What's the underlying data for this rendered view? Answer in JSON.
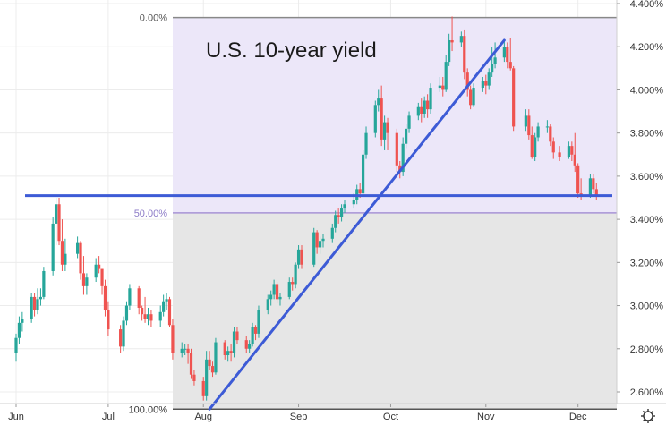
{
  "chart_data": {
    "type": "candlestick",
    "title": "U.S. 10-year yield",
    "ylim": [
      2.53,
      4.4
    ],
    "y_ticks": [
      "4.400%",
      "4.200%",
      "4.000%",
      "3.800%",
      "3.600%",
      "3.400%",
      "3.200%",
      "3.000%",
      "2.800%",
      "2.600%"
    ],
    "x_ticks": [
      "Jun",
      "Jul",
      "Aug",
      "Sep",
      "Oct",
      "Nov",
      "Dec"
    ],
    "fib_levels": [
      {
        "label": "0.00%",
        "value": 4.335
      },
      {
        "label": "50.00%",
        "value": 3.43
      },
      {
        "label": "100.00%",
        "value": 2.52
      }
    ],
    "horizontal_line": 3.51,
    "trendlines": [
      {
        "from": [
          "Aug 3",
          2.52
        ],
        "to": [
          "Nov 7",
          4.23
        ]
      }
    ],
    "grid": true,
    "colors": {
      "up": "#26a69a",
      "down": "#ef5350",
      "line": "#3d5bd6",
      "upper_zone": "#ece7f9",
      "lower_zone": "#e6e6e6",
      "fib_zero": "#888888",
      "fib_mid": "#a894d6",
      "fib_full": "#555555"
    },
    "candles": [
      {
        "date": "Jun 1",
        "o": 2.78,
        "h": 2.87,
        "l": 2.74,
        "c": 2.85
      },
      {
        "date": "Jun 2",
        "o": 2.85,
        "h": 2.95,
        "l": 2.82,
        "c": 2.92
      },
      {
        "date": "Jun 3",
        "o": 2.92,
        "h": 2.97,
        "l": 2.88,
        "c": 2.94
      },
      {
        "date": "Jun 6",
        "o": 2.94,
        "h": 3.06,
        "l": 2.92,
        "c": 3.04
      },
      {
        "date": "Jun 7",
        "o": 3.04,
        "h": 3.06,
        "l": 2.95,
        "c": 2.98
      },
      {
        "date": "Jun 8",
        "o": 2.98,
        "h": 3.08,
        "l": 2.96,
        "c": 3.03
      },
      {
        "date": "Jun 9",
        "o": 3.03,
        "h": 3.08,
        "l": 3.0,
        "c": 3.04
      },
      {
        "date": "Jun 10",
        "o": 3.04,
        "h": 3.18,
        "l": 3.03,
        "c": 3.16
      },
      {
        "date": "Jun 13",
        "o": 3.16,
        "h": 3.41,
        "l": 3.14,
        "c": 3.38
      },
      {
        "date": "Jun 14",
        "o": 3.38,
        "h": 3.5,
        "l": 3.28,
        "c": 3.47
      },
      {
        "date": "Jun 15",
        "o": 3.47,
        "h": 3.5,
        "l": 3.28,
        "c": 3.3
      },
      {
        "date": "Jun 16",
        "o": 3.3,
        "h": 3.4,
        "l": 3.16,
        "c": 3.19
      },
      {
        "date": "Jun 17",
        "o": 3.19,
        "h": 3.31,
        "l": 3.16,
        "c": 3.24
      },
      {
        "date": "Jun 21",
        "o": 3.24,
        "h": 3.32,
        "l": 3.22,
        "c": 3.29
      },
      {
        "date": "Jun 22",
        "o": 3.29,
        "h": 3.3,
        "l": 3.12,
        "c": 3.15
      },
      {
        "date": "Jun 23",
        "o": 3.15,
        "h": 3.23,
        "l": 3.05,
        "c": 3.09
      },
      {
        "date": "Jun 24",
        "o": 3.09,
        "h": 3.15,
        "l": 3.05,
        "c": 3.13
      },
      {
        "date": "Jun 27",
        "o": 3.13,
        "h": 3.22,
        "l": 3.11,
        "c": 3.19
      },
      {
        "date": "Jun 28",
        "o": 3.19,
        "h": 3.23,
        "l": 3.15,
        "c": 3.17
      },
      {
        "date": "Jun 29",
        "o": 3.17,
        "h": 3.17,
        "l": 3.05,
        "c": 3.09
      },
      {
        "date": "Jun 30",
        "o": 3.09,
        "h": 3.12,
        "l": 2.95,
        "c": 2.98
      },
      {
        "date": "Jul 1",
        "o": 2.98,
        "h": 3.02,
        "l": 2.86,
        "c": 2.89
      },
      {
        "date": "Jul 5",
        "o": 2.89,
        "h": 2.91,
        "l": 2.78,
        "c": 2.81
      },
      {
        "date": "Jul 6",
        "o": 2.81,
        "h": 2.95,
        "l": 2.79,
        "c": 2.93
      },
      {
        "date": "Jul 7",
        "o": 2.93,
        "h": 3.02,
        "l": 2.91,
        "c": 3.0
      },
      {
        "date": "Jul 8",
        "o": 3.0,
        "h": 3.1,
        "l": 2.98,
        "c": 3.08
      },
      {
        "date": "Jul 11",
        "o": 3.08,
        "h": 3.09,
        "l": 2.96,
        "c": 2.99
      },
      {
        "date": "Jul 12",
        "o": 2.99,
        "h": 3.0,
        "l": 2.93,
        "c": 2.96
      },
      {
        "date": "Jul 13",
        "o": 2.96,
        "h": 3.04,
        "l": 2.92,
        "c": 2.94
      },
      {
        "date": "Jul 14",
        "o": 2.94,
        "h": 2.99,
        "l": 2.91,
        "c": 2.96
      },
      {
        "date": "Jul 15",
        "o": 2.96,
        "h": 2.98,
        "l": 2.9,
        "c": 2.93
      },
      {
        "date": "Jul 18",
        "o": 2.93,
        "h": 3.0,
        "l": 2.9,
        "c": 2.97
      },
      {
        "date": "Jul 19",
        "o": 2.97,
        "h": 3.05,
        "l": 2.95,
        "c": 3.02
      },
      {
        "date": "Jul 20",
        "o": 3.02,
        "h": 3.06,
        "l": 2.98,
        "c": 3.03
      },
      {
        "date": "Jul 21",
        "o": 3.03,
        "h": 3.04,
        "l": 2.9,
        "c": 2.91
      },
      {
        "date": "Jul 22",
        "o": 2.91,
        "h": 2.94,
        "l": 2.75,
        "c": 2.78
      },
      {
        "date": "Jul 25",
        "o": 2.78,
        "h": 2.83,
        "l": 2.76,
        "c": 2.8
      },
      {
        "date": "Jul 26",
        "o": 2.8,
        "h": 2.82,
        "l": 2.77,
        "c": 2.8
      },
      {
        "date": "Jul 27",
        "o": 2.8,
        "h": 2.82,
        "l": 2.73,
        "c": 2.78
      },
      {
        "date": "Jul 28",
        "o": 2.78,
        "h": 2.8,
        "l": 2.66,
        "c": 2.68
      },
      {
        "date": "Jul 29",
        "o": 2.68,
        "h": 2.7,
        "l": 2.63,
        "c": 2.65
      },
      {
        "date": "Aug 1",
        "o": 2.65,
        "h": 2.67,
        "l": 2.56,
        "c": 2.58
      },
      {
        "date": "Aug 2",
        "o": 2.58,
        "h": 2.79,
        "l": 2.56,
        "c": 2.75
      },
      {
        "date": "Aug 3",
        "o": 2.75,
        "h": 2.79,
        "l": 2.7,
        "c": 2.72
      },
      {
        "date": "Aug 4",
        "o": 2.72,
        "h": 2.74,
        "l": 2.67,
        "c": 2.69
      },
      {
        "date": "Aug 5",
        "o": 2.69,
        "h": 2.85,
        "l": 2.68,
        "c": 2.83
      },
      {
        "date": "Aug 8",
        "o": 2.83,
        "h": 2.84,
        "l": 2.75,
        "c": 2.77
      },
      {
        "date": "Aug 9",
        "o": 2.77,
        "h": 2.81,
        "l": 2.74,
        "c": 2.79
      },
      {
        "date": "Aug 10",
        "o": 2.79,
        "h": 2.82,
        "l": 2.74,
        "c": 2.78
      },
      {
        "date": "Aug 11",
        "o": 2.78,
        "h": 2.9,
        "l": 2.76,
        "c": 2.88
      },
      {
        "date": "Aug 12",
        "o": 2.88,
        "h": 2.9,
        "l": 2.82,
        "c": 2.84
      },
      {
        "date": "Aug 15",
        "o": 2.84,
        "h": 2.86,
        "l": 2.78,
        "c": 2.8
      },
      {
        "date": "Aug 16",
        "o": 2.8,
        "h": 2.84,
        "l": 2.78,
        "c": 2.82
      },
      {
        "date": "Aug 17",
        "o": 2.82,
        "h": 2.92,
        "l": 2.81,
        "c": 2.9
      },
      {
        "date": "Aug 18",
        "o": 2.9,
        "h": 2.91,
        "l": 2.84,
        "c": 2.87
      },
      {
        "date": "Aug 19",
        "o": 2.87,
        "h": 3.0,
        "l": 2.85,
        "c": 2.98
      },
      {
        "date": "Aug 22",
        "o": 2.98,
        "h": 3.05,
        "l": 2.96,
        "c": 3.03
      },
      {
        "date": "Aug 23",
        "o": 3.03,
        "h": 3.07,
        "l": 3.0,
        "c": 3.05
      },
      {
        "date": "Aug 24",
        "o": 3.05,
        "h": 3.12,
        "l": 3.03,
        "c": 3.1
      },
      {
        "date": "Aug 25",
        "o": 3.1,
        "h": 3.11,
        "l": 3.01,
        "c": 3.03
      },
      {
        "date": "Aug 26",
        "o": 3.03,
        "h": 3.06,
        "l": 3.0,
        "c": 3.04
      },
      {
        "date": "Aug 29",
        "o": 3.04,
        "h": 3.13,
        "l": 3.03,
        "c": 3.11
      },
      {
        "date": "Aug 30",
        "o": 3.11,
        "h": 3.13,
        "l": 3.07,
        "c": 3.1
      },
      {
        "date": "Aug 31",
        "o": 3.1,
        "h": 3.2,
        "l": 3.08,
        "c": 3.19
      },
      {
        "date": "Sep 1",
        "o": 3.19,
        "h": 3.28,
        "l": 3.17,
        "c": 3.26
      },
      {
        "date": "Sep 2",
        "o": 3.26,
        "h": 3.28,
        "l": 3.17,
        "c": 3.19
      },
      {
        "date": "Sep 6",
        "o": 3.19,
        "h": 3.36,
        "l": 3.18,
        "c": 3.34
      },
      {
        "date": "Sep 7",
        "o": 3.34,
        "h": 3.35,
        "l": 3.24,
        "c": 3.27
      },
      {
        "date": "Sep 8",
        "o": 3.27,
        "h": 3.32,
        "l": 3.24,
        "c": 3.3
      },
      {
        "date": "Sep 9",
        "o": 3.3,
        "h": 3.33,
        "l": 3.27,
        "c": 3.31
      },
      {
        "date": "Sep 12",
        "o": 3.31,
        "h": 3.38,
        "l": 3.29,
        "c": 3.36
      },
      {
        "date": "Sep 13",
        "o": 3.36,
        "h": 3.44,
        "l": 3.34,
        "c": 3.42
      },
      {
        "date": "Sep 14",
        "o": 3.42,
        "h": 3.45,
        "l": 3.38,
        "c": 3.41
      },
      {
        "date": "Sep 15",
        "o": 3.41,
        "h": 3.47,
        "l": 3.39,
        "c": 3.45
      },
      {
        "date": "Sep 16",
        "o": 3.45,
        "h": 3.49,
        "l": 3.43,
        "c": 3.47
      },
      {
        "date": "Sep 19",
        "o": 3.47,
        "h": 3.52,
        "l": 3.45,
        "c": 3.49
      },
      {
        "date": "Sep 20",
        "o": 3.49,
        "h": 3.56,
        "l": 3.47,
        "c": 3.54
      },
      {
        "date": "Sep 21",
        "o": 3.54,
        "h": 3.57,
        "l": 3.5,
        "c": 3.52
      },
      {
        "date": "Sep 22",
        "o": 3.52,
        "h": 3.72,
        "l": 3.51,
        "c": 3.7
      },
      {
        "date": "Sep 23",
        "o": 3.7,
        "h": 3.83,
        "l": 3.68,
        "c": 3.8
      },
      {
        "date": "Sep 26",
        "o": 3.8,
        "h": 3.95,
        "l": 3.78,
        "c": 3.93
      },
      {
        "date": "Sep 27",
        "o": 3.93,
        "h": 4.0,
        "l": 3.9,
        "c": 3.96
      },
      {
        "date": "Sep 28",
        "o": 3.96,
        "h": 4.02,
        "l": 3.74,
        "c": 3.77
      },
      {
        "date": "Sep 29",
        "o": 3.77,
        "h": 3.88,
        "l": 3.72,
        "c": 3.85
      },
      {
        "date": "Sep 30",
        "o": 3.85,
        "h": 3.87,
        "l": 3.72,
        "c": 3.8
      },
      {
        "date": "Oct 3",
        "o": 3.8,
        "h": 3.82,
        "l": 3.62,
        "c": 3.65
      },
      {
        "date": "Oct 4",
        "o": 3.65,
        "h": 3.67,
        "l": 3.59,
        "c": 3.62
      },
      {
        "date": "Oct 5",
        "o": 3.62,
        "h": 3.78,
        "l": 3.6,
        "c": 3.75
      },
      {
        "date": "Oct 6",
        "o": 3.75,
        "h": 3.84,
        "l": 3.73,
        "c": 3.82
      },
      {
        "date": "Oct 7",
        "o": 3.82,
        "h": 3.9,
        "l": 3.8,
        "c": 3.88
      },
      {
        "date": "Oct 10",
        "o": 3.88,
        "h": 3.94,
        "l": 3.86,
        "c": 3.92
      },
      {
        "date": "Oct 11",
        "o": 3.92,
        "h": 3.96,
        "l": 3.85,
        "c": 3.89
      },
      {
        "date": "Oct 12",
        "o": 3.89,
        "h": 3.97,
        "l": 3.87,
        "c": 3.95
      },
      {
        "date": "Oct 13",
        "o": 3.95,
        "h": 3.98,
        "l": 3.87,
        "c": 3.91
      },
      {
        "date": "Oct 14",
        "o": 3.91,
        "h": 4.03,
        "l": 3.89,
        "c": 4.01
      },
      {
        "date": "Oct 17",
        "o": 4.01,
        "h": 4.06,
        "l": 3.99,
        "c": 4.02
      },
      {
        "date": "Oct 18",
        "o": 4.02,
        "h": 4.06,
        "l": 3.97,
        "c": 4.0
      },
      {
        "date": "Oct 19",
        "o": 4.0,
        "h": 4.16,
        "l": 3.99,
        "c": 4.13
      },
      {
        "date": "Oct 20",
        "o": 4.13,
        "h": 4.26,
        "l": 4.11,
        "c": 4.23
      },
      {
        "date": "Oct 21",
        "o": 4.23,
        "h": 4.34,
        "l": 4.18,
        "c": 4.22
      },
      {
        "date": "Oct 24",
        "o": 4.22,
        "h": 4.27,
        "l": 4.2,
        "c": 4.25
      },
      {
        "date": "Oct 25",
        "o": 4.25,
        "h": 4.28,
        "l": 4.05,
        "c": 4.08
      },
      {
        "date": "Oct 26",
        "o": 4.08,
        "h": 4.1,
        "l": 3.97,
        "c": 4.0
      },
      {
        "date": "Oct 27",
        "o": 4.0,
        "h": 4.02,
        "l": 3.91,
        "c": 3.93
      },
      {
        "date": "Oct 28",
        "o": 3.93,
        "h": 4.03,
        "l": 3.92,
        "c": 4.01
      },
      {
        "date": "Oct 31",
        "o": 4.01,
        "h": 4.06,
        "l": 3.99,
        "c": 4.04
      },
      {
        "date": "Nov 1",
        "o": 4.04,
        "h": 4.07,
        "l": 3.98,
        "c": 4.02
      },
      {
        "date": "Nov 2",
        "o": 4.02,
        "h": 4.1,
        "l": 4.0,
        "c": 4.08
      },
      {
        "date": "Nov 3",
        "o": 4.08,
        "h": 4.2,
        "l": 4.06,
        "c": 4.12
      },
      {
        "date": "Nov 4",
        "o": 4.12,
        "h": 4.22,
        "l": 4.1,
        "c": 4.15
      },
      {
        "date": "Nov 7",
        "o": 4.15,
        "h": 4.23,
        "l": 4.13,
        "c": 4.2
      },
      {
        "date": "Nov 8",
        "o": 4.2,
        "h": 4.22,
        "l": 4.1,
        "c": 4.13
      },
      {
        "date": "Nov 9",
        "o": 4.13,
        "h": 4.24,
        "l": 4.09,
        "c": 4.1
      },
      {
        "date": "Nov 10",
        "o": 4.1,
        "h": 4.11,
        "l": 3.81,
        "c": 3.83
      },
      {
        "date": "Nov 14",
        "o": 3.83,
        "h": 3.91,
        "l": 3.81,
        "c": 3.88
      },
      {
        "date": "Nov 15",
        "o": 3.88,
        "h": 3.91,
        "l": 3.77,
        "c": 3.79
      },
      {
        "date": "Nov 16",
        "o": 3.79,
        "h": 3.83,
        "l": 3.68,
        "c": 3.69
      },
      {
        "date": "Nov 17",
        "o": 3.69,
        "h": 3.8,
        "l": 3.67,
        "c": 3.78
      },
      {
        "date": "Nov 18",
        "o": 3.78,
        "h": 3.85,
        "l": 3.76,
        "c": 3.83
      },
      {
        "date": "Nov 21",
        "o": 3.83,
        "h": 3.86,
        "l": 3.8,
        "c": 3.83
      },
      {
        "date": "Nov 22",
        "o": 3.83,
        "h": 3.84,
        "l": 3.74,
        "c": 3.76
      },
      {
        "date": "Nov 23",
        "o": 3.76,
        "h": 3.78,
        "l": 3.68,
        "c": 3.71
      },
      {
        "date": "Nov 25",
        "o": 3.71,
        "h": 3.74,
        "l": 3.67,
        "c": 3.69
      },
      {
        "date": "Nov 28",
        "o": 3.69,
        "h": 3.76,
        "l": 3.68,
        "c": 3.74
      },
      {
        "date": "Nov 29",
        "o": 3.74,
        "h": 3.76,
        "l": 3.67,
        "c": 3.7
      },
      {
        "date": "Nov 30",
        "o": 3.7,
        "h": 3.8,
        "l": 3.62,
        "c": 3.65
      },
      {
        "date": "Dec 1",
        "o": 3.65,
        "h": 3.66,
        "l": 3.5,
        "c": 3.52
      },
      {
        "date": "Dec 2",
        "o": 3.52,
        "h": 3.59,
        "l": 3.49,
        "c": 3.51
      },
      {
        "date": "Dec 5",
        "o": 3.51,
        "h": 3.61,
        "l": 3.5,
        "c": 3.59
      },
      {
        "date": "Dec 6",
        "o": 3.59,
        "h": 3.61,
        "l": 3.52,
        "c": 3.54
      },
      {
        "date": "Dec 7",
        "o": 3.54,
        "h": 3.57,
        "l": 3.49,
        "c": 3.51
      }
    ]
  }
}
